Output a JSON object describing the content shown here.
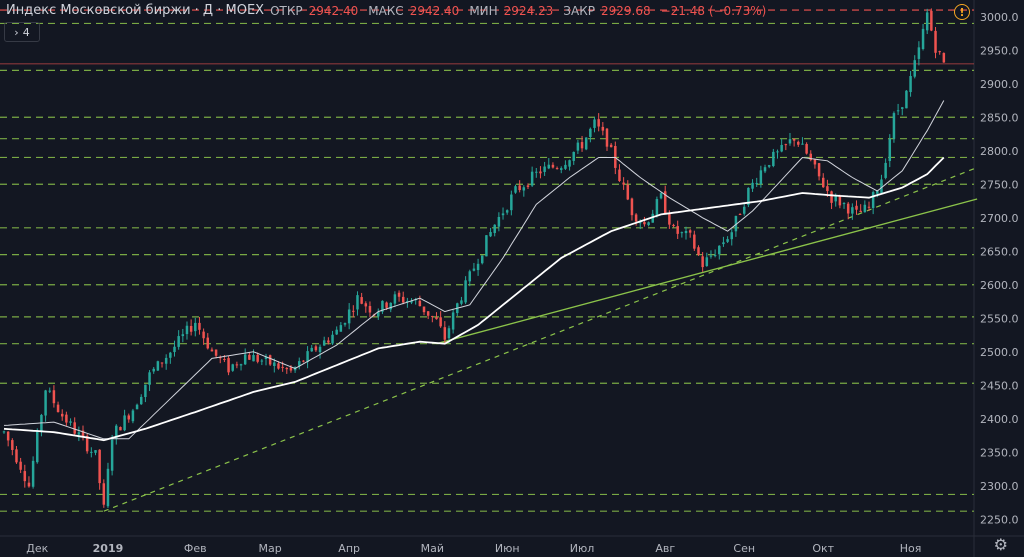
{
  "header": {
    "title": "Индекс Московской биржи · Д · MOEX",
    "open_label": "ОТКР",
    "open": "2942.40",
    "high_label": "МАКС",
    "high": "2942.40",
    "low_label": "МИН",
    "low": "2924.23",
    "close_label": "ЗАКР",
    "close": "2929.68",
    "change": "−21.48 (−0.73%)",
    "indicators_count": "4"
  },
  "colors": {
    "background": "#131722",
    "up": "#26a69a",
    "down": "#ef5350",
    "ma_fast": "#d1d4dc",
    "ma_slow": "#ffffff",
    "level_lines": "#8bc34a",
    "trend_line": "#8bc34a",
    "resistance": "#ef5350"
  },
  "chart_data": {
    "type": "candlestick",
    "ylim": [
      2225,
      3025
    ],
    "y_ticks": [
      2250,
      2300,
      2350,
      2400,
      2450,
      2500,
      2550,
      2600,
      2650,
      2700,
      2750,
      2800,
      2850,
      2900,
      2950,
      3000
    ],
    "x_ticks": [
      {
        "label": "Дек",
        "index": 8
      },
      {
        "label": "2019",
        "index": 25
      },
      {
        "label": "Фев",
        "index": 46
      },
      {
        "label": "Мар",
        "index": 64
      },
      {
        "label": "Апр",
        "index": 83
      },
      {
        "label": "Май",
        "index": 103
      },
      {
        "label": "Июн",
        "index": 121
      },
      {
        "label": "Июл",
        "index": 139
      },
      {
        "label": "Авг",
        "index": 159
      },
      {
        "label": "Сен",
        "index": 178
      },
      {
        "label": "Окт",
        "index": 197
      },
      {
        "label": "Ноя",
        "index": 218
      }
    ],
    "bars": 227,
    "anchors": [
      [
        0,
        2380
      ],
      [
        4,
        2330
      ],
      [
        6,
        2300
      ],
      [
        10,
        2445
      ],
      [
        14,
        2405
      ],
      [
        18,
        2375
      ],
      [
        22,
        2345
      ],
      [
        24,
        2265
      ],
      [
        26,
        2375
      ],
      [
        31,
        2415
      ],
      [
        35,
        2465
      ],
      [
        40,
        2500
      ],
      [
        46,
        2545
      ],
      [
        50,
        2500
      ],
      [
        54,
        2475
      ],
      [
        58,
        2495
      ],
      [
        63,
        2485
      ],
      [
        69,
        2470
      ],
      [
        75,
        2505
      ],
      [
        80,
        2530
      ],
      [
        85,
        2580
      ],
      [
        89,
        2560
      ],
      [
        94,
        2580
      ],
      [
        99,
        2575
      ],
      [
        104,
        2545
      ],
      [
        106,
        2520
      ],
      [
        109,
        2570
      ],
      [
        114,
        2640
      ],
      [
        118,
        2690
      ],
      [
        123,
        2740
      ],
      [
        129,
        2770
      ],
      [
        134,
        2780
      ],
      [
        139,
        2810
      ],
      [
        142,
        2840
      ],
      [
        145,
        2815
      ],
      [
        148,
        2760
      ],
      [
        151,
        2710
      ],
      [
        154,
        2690
      ],
      [
        158,
        2730
      ],
      [
        161,
        2680
      ],
      [
        165,
        2670
      ],
      [
        168,
        2630
      ],
      [
        171,
        2650
      ],
      [
        175,
        2680
      ],
      [
        179,
        2740
      ],
      [
        183,
        2780
      ],
      [
        187,
        2800
      ],
      [
        190,
        2820
      ],
      [
        193,
        2795
      ],
      [
        196,
        2760
      ],
      [
        199,
        2730
      ],
      [
        202,
        2720
      ],
      [
        205,
        2705
      ],
      [
        208,
        2715
      ],
      [
        211,
        2760
      ],
      [
        214,
        2850
      ],
      [
        217,
        2885
      ],
      [
        220,
        2950
      ],
      [
        222,
        3005
      ],
      [
        224,
        2955
      ],
      [
        226,
        2930
      ]
    ],
    "levels": [
      2990,
      2920,
      2850,
      2818,
      2790,
      2750,
      2685,
      2645,
      2600,
      2552,
      2512,
      2453,
      2287,
      2262
    ],
    "resistance_levels": [
      3010
    ],
    "close_line": 2929.68,
    "trend_solid": [
      [
        104,
        2512
      ],
      [
        234,
        2728
      ]
    ],
    "trend_dashed": [
      [
        24,
        2262
      ],
      [
        234,
        2775
      ]
    ],
    "ma_fast_anchors": [
      [
        0,
        2390
      ],
      [
        12,
        2395
      ],
      [
        24,
        2370
      ],
      [
        30,
        2370
      ],
      [
        40,
        2430
      ],
      [
        50,
        2490
      ],
      [
        60,
        2500
      ],
      [
        70,
        2475
      ],
      [
        80,
        2510
      ],
      [
        90,
        2560
      ],
      [
        100,
        2580
      ],
      [
        106,
        2560
      ],
      [
        112,
        2570
      ],
      [
        120,
        2640
      ],
      [
        128,
        2720
      ],
      [
        136,
        2760
      ],
      [
        143,
        2790
      ],
      [
        147,
        2790
      ],
      [
        153,
        2760
      ],
      [
        160,
        2730
      ],
      [
        168,
        2700
      ],
      [
        174,
        2680
      ],
      [
        180,
        2710
      ],
      [
        186,
        2750
      ],
      [
        192,
        2790
      ],
      [
        198,
        2785
      ],
      [
        204,
        2760
      ],
      [
        210,
        2740
      ],
      [
        216,
        2770
      ],
      [
        222,
        2830
      ],
      [
        226,
        2875
      ]
    ],
    "ma_slow_anchors": [
      [
        0,
        2385
      ],
      [
        12,
        2380
      ],
      [
        24,
        2368
      ],
      [
        34,
        2385
      ],
      [
        46,
        2410
      ],
      [
        60,
        2440
      ],
      [
        70,
        2455
      ],
      [
        80,
        2480
      ],
      [
        90,
        2505
      ],
      [
        100,
        2515
      ],
      [
        106,
        2512
      ],
      [
        114,
        2540
      ],
      [
        124,
        2590
      ],
      [
        134,
        2640
      ],
      [
        146,
        2680
      ],
      [
        158,
        2705
      ],
      [
        170,
        2715
      ],
      [
        182,
        2725
      ],
      [
        192,
        2737
      ],
      [
        200,
        2733
      ],
      [
        208,
        2730
      ],
      [
        216,
        2745
      ],
      [
        222,
        2765
      ],
      [
        226,
        2790
      ]
    ]
  }
}
